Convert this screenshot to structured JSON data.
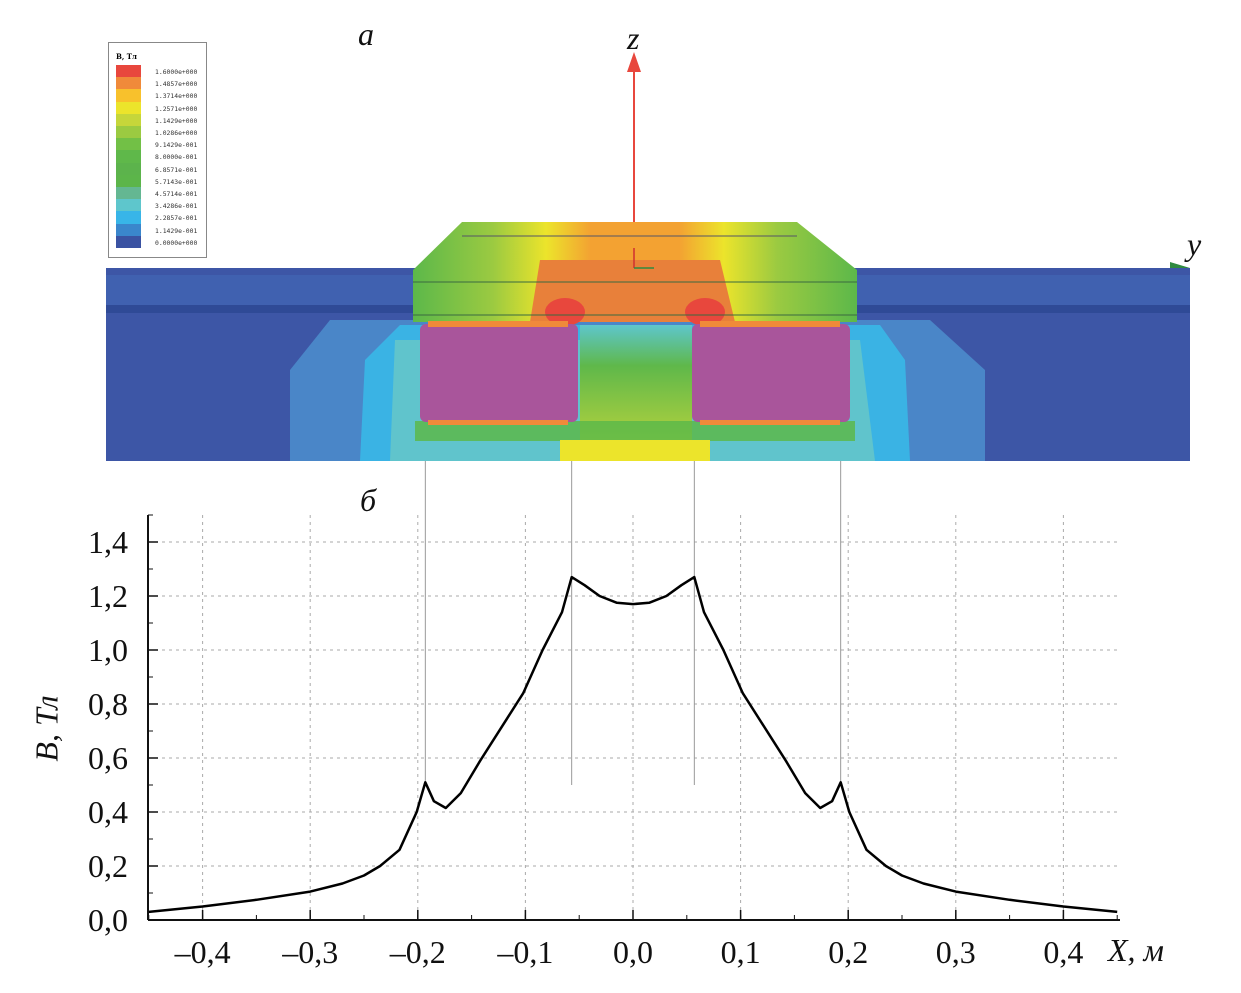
{
  "panel_a": {
    "label": "а",
    "axis_z": "z",
    "axis_y": "y",
    "legend": {
      "title": "B, Тл",
      "entries": [
        {
          "value": "1.6000e+000",
          "color": "#e8473d"
        },
        {
          "value": "1.4857e+000",
          "color": "#f08a3a"
        },
        {
          "value": "1.3714e+000",
          "color": "#f8c12c"
        },
        {
          "value": "1.2571e+000",
          "color": "#ece42b"
        },
        {
          "value": "1.1429e+000",
          "color": "#c6d63a"
        },
        {
          "value": "1.0286e+000",
          "color": "#9bca41"
        },
        {
          "value": "9.1429e-001",
          "color": "#72c046"
        },
        {
          "value": "8.0000e-001",
          "color": "#5fb84a"
        },
        {
          "value": "6.8571e-001",
          "color": "#5cb34c"
        },
        {
          "value": "5.7143e-001",
          "color": "#5cb54a"
        },
        {
          "value": "4.5714e-001",
          "color": "#64b792"
        },
        {
          "value": "3.4286e-001",
          "color": "#5ec6cc"
        },
        {
          "value": "2.2857e-001",
          "color": "#38b5e8"
        },
        {
          "value": "1.1429e-001",
          "color": "#3a86cc"
        },
        {
          "value": "0.0000e+000",
          "color": "#3a52a2"
        }
      ]
    }
  },
  "panel_b_label": "б",
  "chart_data": {
    "type": "line",
    "title": "",
    "xlabel": "X, м",
    "ylabel": "B, Тл",
    "xlim": [
      -0.45,
      0.45
    ],
    "ylim": [
      0,
      1.5
    ],
    "grid": true,
    "x_ticks": [
      -0.4,
      -0.3,
      -0.2,
      -0.1,
      0,
      0.1,
      0.2,
      0.3,
      0.4
    ],
    "x_tick_labels": [
      "–0,4",
      "–0,3",
      "–0,2",
      "–0,1",
      "0,0",
      "0,1",
      "0,2",
      "0,3",
      "0,4"
    ],
    "y_ticks": [
      0,
      0.2,
      0.4,
      0.6,
      0.8,
      1.0,
      1.2,
      1.4
    ],
    "y_tick_labels": [
      "0,0",
      "0,2",
      "0,4",
      "0,6",
      "0,8",
      "1,0",
      "1,2",
      "1,4"
    ],
    "reference_lines_x": [
      -0.193,
      -0.057,
      0.057,
      0.193
    ],
    "series": [
      {
        "name": "B",
        "x": [
          -0.45,
          -0.4,
          -0.35,
          -0.3,
          -0.27,
          -0.25,
          -0.235,
          -0.217,
          -0.201,
          -0.193,
          -0.185,
          -0.174,
          -0.16,
          -0.142,
          -0.126,
          -0.102,
          -0.084,
          -0.066,
          -0.057,
          -0.045,
          -0.031,
          -0.015,
          0,
          0.015,
          0.031,
          0.045,
          0.057,
          0.066,
          0.084,
          0.102,
          0.126,
          0.142,
          0.16,
          0.174,
          0.185,
          0.193,
          0.201,
          0.217,
          0.235,
          0.25,
          0.27,
          0.3,
          0.35,
          0.4,
          0.45
        ],
        "y": [
          0.03,
          0.05,
          0.075,
          0.105,
          0.135,
          0.165,
          0.2,
          0.26,
          0.4,
          0.51,
          0.44,
          0.415,
          0.47,
          0.59,
          0.69,
          0.84,
          1.0,
          1.14,
          1.27,
          1.24,
          1.2,
          1.175,
          1.17,
          1.175,
          1.2,
          1.24,
          1.27,
          1.14,
          1.0,
          0.84,
          0.69,
          0.59,
          0.47,
          0.415,
          0.44,
          0.51,
          0.4,
          0.26,
          0.2,
          0.165,
          0.135,
          0.105,
          0.075,
          0.05,
          0.03
        ]
      }
    ]
  }
}
